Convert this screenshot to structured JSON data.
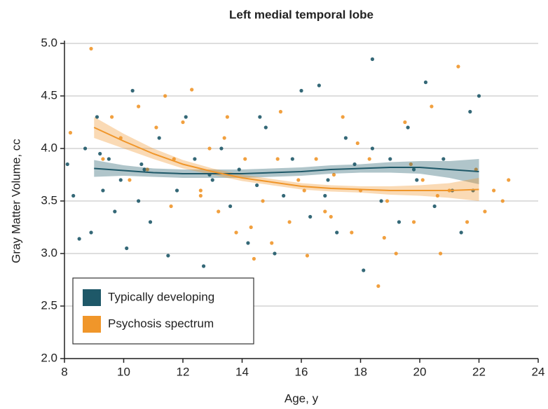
{
  "chart_data": {
    "type": "scatter",
    "title": "Left medial temporal lobe",
    "xlabel": "Age, y",
    "ylabel": "Gray Matter Volume, cc",
    "xlim": [
      8,
      24
    ],
    "ylim": [
      2.0,
      5.0
    ],
    "xticks": [
      8,
      10,
      12,
      14,
      16,
      18,
      20,
      22,
      24
    ],
    "yticks": [
      {
        "value": 2.0,
        "label": "2.0"
      },
      {
        "value": 2.5,
        "label": "2.5"
      },
      {
        "value": 3.0,
        "label": "3.0"
      },
      {
        "value": 3.5,
        "label": "3.5"
      },
      {
        "value": 4.0,
        "label": "4.0"
      },
      {
        "value": 4.5,
        "label": "4.5"
      },
      {
        "value": 5.0,
        "label": "5.0"
      }
    ],
    "grid": true,
    "legend": "lower left",
    "series": [
      {
        "name": "Typically developing",
        "color": "#1e5868",
        "x": [
          8.1,
          8.3,
          8.5,
          8.7,
          8.9,
          9.1,
          9.3,
          9.5,
          9.7,
          9.9,
          10.1,
          10.3,
          10.5,
          10.7,
          10.9,
          11.2,
          11.5,
          11.8,
          12.1,
          12.4,
          12.7,
          13.0,
          13.3,
          13.6,
          13.9,
          14.2,
          14.5,
          14.8,
          15.1,
          15.4,
          15.7,
          16.0,
          16.3,
          16.6,
          16.9,
          17.2,
          17.5,
          17.8,
          18.1,
          18.4,
          18.7,
          19.0,
          19.3,
          19.6,
          19.9,
          20.2,
          20.5,
          20.8,
          21.1,
          21.4,
          21.7,
          22.0,
          9.2,
          10.6,
          12.9,
          14.6,
          16.8,
          18.4,
          19.8,
          21.8
        ],
        "values": [
          3.85,
          3.55,
          3.14,
          4.0,
          3.2,
          4.3,
          3.6,
          3.9,
          3.4,
          3.7,
          3.05,
          4.55,
          3.5,
          3.8,
          3.3,
          4.1,
          2.98,
          3.6,
          4.3,
          3.9,
          2.88,
          3.7,
          4.0,
          3.45,
          3.8,
          3.1,
          3.65,
          4.2,
          3.0,
          3.55,
          3.9,
          4.55,
          3.35,
          4.6,
          3.7,
          3.2,
          4.1,
          3.85,
          2.84,
          4.85,
          3.5,
          3.9,
          3.3,
          4.2,
          3.7,
          4.63,
          3.45,
          3.9,
          3.6,
          3.2,
          4.35,
          4.5,
          3.95,
          3.85,
          3.75,
          4.3,
          3.55,
          4.0,
          3.8,
          3.6
        ],
        "fit": {
          "x": [
            9,
            10,
            11,
            12,
            13,
            14,
            15,
            16,
            17,
            18,
            19,
            20,
            21,
            22
          ],
          "values": [
            3.81,
            3.79,
            3.77,
            3.76,
            3.76,
            3.76,
            3.77,
            3.78,
            3.8,
            3.81,
            3.82,
            3.82,
            3.8,
            3.78
          ],
          "lower": [
            3.73,
            3.74,
            3.73,
            3.72,
            3.72,
            3.72,
            3.73,
            3.74,
            3.76,
            3.77,
            3.77,
            3.76,
            3.72,
            3.66
          ],
          "upper": [
            3.89,
            3.84,
            3.81,
            3.8,
            3.8,
            3.8,
            3.81,
            3.82,
            3.84,
            3.85,
            3.87,
            3.88,
            3.88,
            3.9
          ]
        }
      },
      {
        "name": "Psychosis spectrum",
        "color": "#f0962a",
        "x": [
          8.2,
          8.9,
          9.3,
          9.6,
          9.9,
          10.2,
          10.5,
          10.8,
          11.1,
          11.4,
          11.7,
          12.0,
          12.3,
          12.6,
          12.9,
          13.2,
          13.5,
          13.8,
          14.1,
          14.4,
          14.7,
          15.0,
          15.3,
          15.6,
          15.9,
          16.2,
          16.5,
          16.8,
          17.1,
          17.4,
          17.7,
          18.0,
          18.3,
          18.6,
          18.9,
          19.2,
          19.5,
          19.8,
          20.1,
          20.4,
          20.7,
          21.0,
          21.3,
          21.6,
          21.9,
          22.2,
          22.5,
          22.8,
          23.0,
          11.6,
          12.6,
          13.4,
          14.3,
          15.2,
          16.1,
          17.0,
          17.9,
          18.8,
          19.7,
          20.6
        ],
        "values": [
          4.15,
          4.95,
          3.9,
          4.3,
          4.1,
          3.7,
          4.4,
          3.8,
          4.2,
          4.5,
          3.9,
          4.25,
          4.56,
          3.6,
          4.0,
          3.4,
          4.3,
          3.2,
          3.9,
          2.95,
          3.5,
          3.1,
          4.35,
          3.3,
          3.7,
          2.98,
          3.9,
          3.4,
          3.75,
          4.3,
          3.2,
          3.6,
          3.9,
          2.69,
          3.5,
          3.0,
          4.25,
          3.3,
          3.7,
          4.4,
          3.0,
          3.6,
          4.78,
          3.3,
          3.8,
          3.4,
          3.6,
          3.5,
          3.7,
          3.45,
          3.55,
          4.1,
          3.25,
          3.9,
          3.6,
          3.35,
          4.05,
          3.15,
          3.85,
          3.55
        ],
        "fit": {
          "x": [
            9,
            10,
            11,
            12,
            13,
            14,
            15,
            16,
            17,
            18,
            19,
            20,
            21,
            22
          ],
          "values": [
            4.2,
            4.07,
            3.95,
            3.85,
            3.78,
            3.72,
            3.68,
            3.64,
            3.62,
            3.61,
            3.6,
            3.6,
            3.6,
            3.61
          ],
          "lower": [
            4.1,
            4.0,
            3.9,
            3.81,
            3.75,
            3.69,
            3.65,
            3.61,
            3.59,
            3.58,
            3.56,
            3.55,
            3.53,
            3.5
          ],
          "upper": [
            4.3,
            4.14,
            4.0,
            3.89,
            3.81,
            3.75,
            3.71,
            3.67,
            3.65,
            3.64,
            3.64,
            3.65,
            3.67,
            3.72
          ]
        }
      }
    ]
  }
}
